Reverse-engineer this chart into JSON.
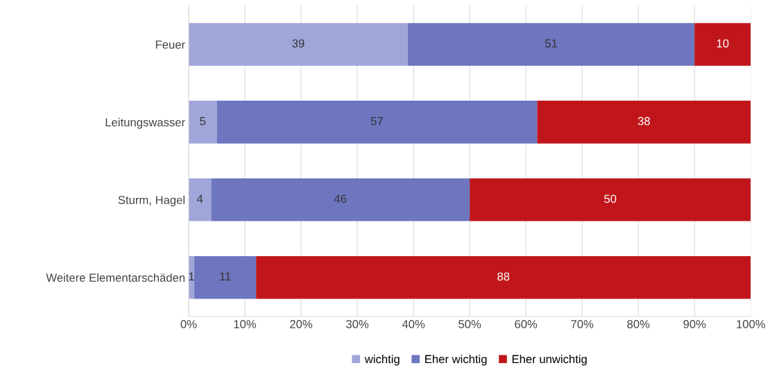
{
  "chart_data": {
    "type": "bar",
    "orientation": "horizontal",
    "stacked": true,
    "categories": [
      "Feuer",
      "Leitungswasser",
      "Sturm, Hagel",
      "Weitere Elementarschäden"
    ],
    "series": [
      {
        "name": "wichtig",
        "color": "#a0a6da",
        "values": [
          39,
          5,
          4,
          1
        ]
      },
      {
        "name": "Eher wichtig",
        "color": "#6e76c0",
        "values": [
          51,
          57,
          46,
          11
        ]
      },
      {
        "name": "Eher unwichtig",
        "color": "#c0161b",
        "values": [
          10,
          38,
          50,
          88
        ]
      }
    ],
    "xlim": [
      0,
      100
    ],
    "xticks": [
      {
        "value": 0,
        "label": "0%"
      },
      {
        "value": 10,
        "label": "10%"
      },
      {
        "value": 20,
        "label": "20%"
      },
      {
        "value": 30,
        "label": "30%"
      },
      {
        "value": 40,
        "label": "40%"
      },
      {
        "value": 50,
        "label": "50%"
      },
      {
        "value": 60,
        "label": "60%"
      },
      {
        "value": 70,
        "label": "70%"
      },
      {
        "value": 80,
        "label": "80%"
      },
      {
        "value": 90,
        "label": "90%"
      },
      {
        "value": 100,
        "label": "100%"
      }
    ],
    "grid": "x",
    "legend": "bottom",
    "data_labels": true
  }
}
